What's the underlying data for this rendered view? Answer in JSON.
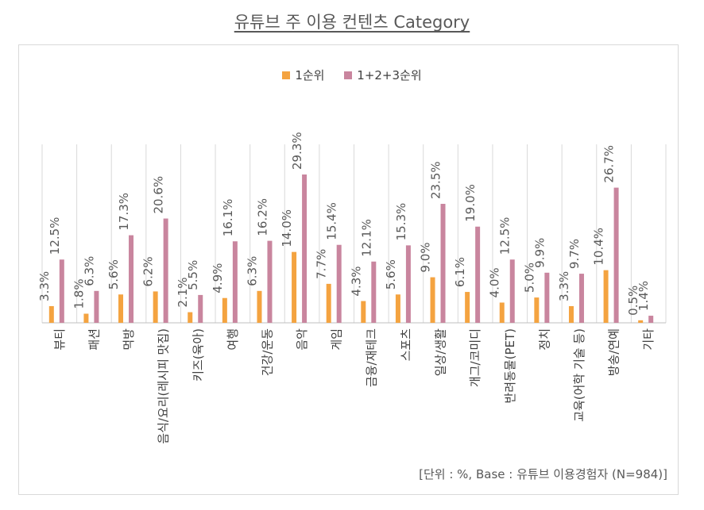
{
  "title": "유튜브 주 이용 컨텐츠 Category",
  "source_note": "[단위 : %, Base : 유튜브 이용경험자 (N=984)]",
  "colors": {
    "rank1": "#f4a340",
    "rank123": "#c9859e",
    "axis": "#bfbfbf",
    "grid": "#d9d9d9"
  },
  "chart_data": {
    "type": "bar",
    "title": "유튜브 주 이용 컨텐츠 Category",
    "categories": [
      "뷰티",
      "패션",
      "먹방",
      "음식/요리(레시피 맛집)",
      "키즈(육아)",
      "여행",
      "건강/운동",
      "음악",
      "게임",
      "금융/재테크",
      "스포츠",
      "일상/생활",
      "개그/코미디",
      "반려동물(PET)",
      "정치",
      "교육(어학 기술 등)",
      "방송/연예",
      "기타"
    ],
    "series": [
      {
        "name": "1순위",
        "values": [
          3.3,
          1.8,
          5.6,
          6.2,
          2.1,
          4.9,
          6.3,
          14.0,
          7.7,
          4.3,
          5.6,
          9.0,
          6.1,
          4.0,
          5.0,
          3.3,
          10.4,
          0.5
        ],
        "labels": [
          "3.3%",
          "1.8%",
          "5.6%",
          "6.2%",
          "2.1%",
          "4.9%",
          "6.3%",
          "14.0%",
          "7.7%",
          "4.3%",
          "5.6%",
          "9.0%",
          "6.1%",
          "4.0%",
          "5.0%",
          "3.3%",
          "10.4%",
          "0.5%"
        ]
      },
      {
        "name": "1+2+3순위",
        "values": [
          12.5,
          6.3,
          17.3,
          20.6,
          5.5,
          16.1,
          16.2,
          29.3,
          15.4,
          12.1,
          15.3,
          23.5,
          19.0,
          12.5,
          9.9,
          9.7,
          26.7,
          1.4
        ],
        "labels": [
          "12.5%",
          "6.3%",
          "17.3%",
          "20.6%",
          "5.5%",
          "16.1%",
          "16.2%",
          "29.3%",
          "15.4%",
          "12.1%",
          "15.3%",
          "23.5%",
          "19.0%",
          "12.5%",
          "9.9%",
          "9.7%",
          "26.7%",
          "1.4%"
        ]
      }
    ],
    "ylim": [
      0,
      29.3
    ],
    "grid": true,
    "legend": "top-center",
    "xlabel": "",
    "ylabel": ""
  }
}
